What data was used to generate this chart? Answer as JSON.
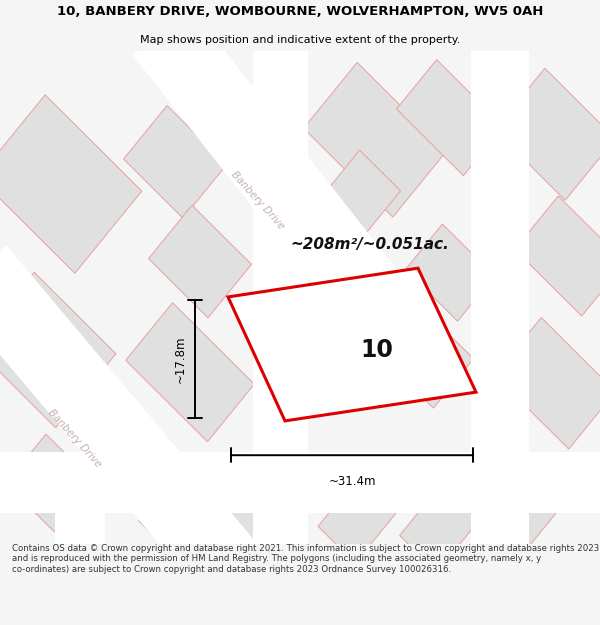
{
  "title_line1": "10, BANBERY DRIVE, WOMBOURNE, WOLVERHAMPTON, WV5 0AH",
  "title_line2": "Map shows position and indicative extent of the property.",
  "area_text": "~208m²/~0.051ac.",
  "house_number": "10",
  "dim_width": "~31.4m",
  "dim_height": "~17.8m",
  "footer_text": "Contains OS data © Crown copyright and database right 2021. This information is subject to Crown copyright and database rights 2023 and is reproduced with the permission of HM Land Registry. The polygons (including the associated geometry, namely x, y co-ordinates) are subject to Crown copyright and database rights 2023 Ordnance Survey 100026316.",
  "map_bg": "#f7f7f7",
  "block_fill": "#e0e0e0",
  "block_edge": "#e8a0a0",
  "road_color": "#ffffff",
  "highlight_fill": "#ffffff",
  "highlight_edge": "#dd0000",
  "street_label_color": "#c8b0b0",
  "title_color": "#000000",
  "footer_color": "#333333",
  "page_bg": "#f5f5f5"
}
